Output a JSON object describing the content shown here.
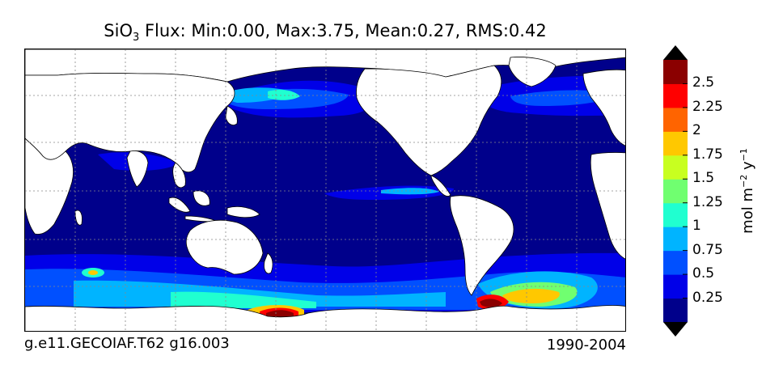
{
  "title": {
    "species": "SiO",
    "species_sub": "3",
    "text": " Flux: Min:0.00, Max:3.75, Mean:0.27, RMS:0.42"
  },
  "footer": {
    "left": "g.e11.GECOIAF.T62 g16.003",
    "right": "1990-2004"
  },
  "colorbar": {
    "units_base": "mol m",
    "units_exp1": "−2",
    "units_mid": " y",
    "units_exp2": "−1",
    "ticks": [
      "0.25",
      "0.5",
      "0.75",
      "1",
      "1.25",
      "1.5",
      "1.75",
      "2",
      "2.25",
      "2.5"
    ],
    "colors": [
      "#00008b",
      "#0000e8",
      "#0050ff",
      "#00b4ff",
      "#20ffd0",
      "#70ff70",
      "#c8ff20",
      "#ffc800",
      "#ff6400",
      "#ff0000",
      "#8b0000"
    ],
    "under_color": "#000000",
    "over_color": "#000000"
  },
  "map": {
    "ocean_color": "#00008b",
    "land_color": "#ffffff",
    "grid_color": "#888888"
  }
}
